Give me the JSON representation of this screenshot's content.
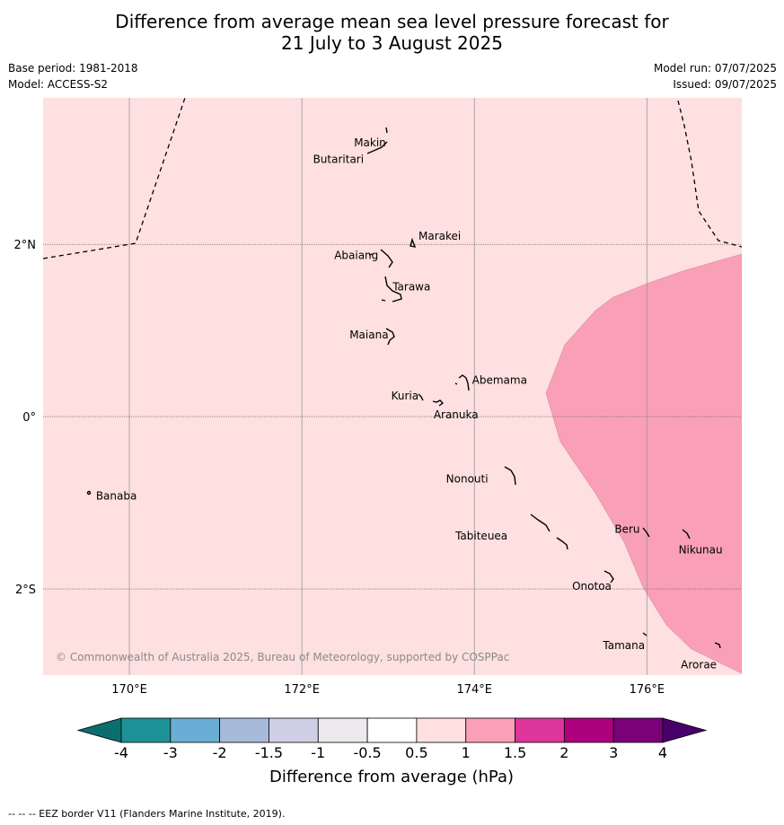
{
  "title": {
    "line1": "Difference from average mean sea level pressure forecast for",
    "line2": "21 July to 3 August 2025"
  },
  "meta": {
    "base_period": "Base period: 1981-2018",
    "model": "Model: ACCESS-S2",
    "model_run": "Model run: 07/07/2025",
    "issued": "Issued: 09/07/2025"
  },
  "map": {
    "lon_range": [
      169,
      177.1
    ],
    "lat_range": [
      -3.0,
      3.7
    ],
    "lon_ticks": [
      {
        "value": 170,
        "label": "170°E"
      },
      {
        "value": 172,
        "label": "172°E"
      },
      {
        "value": 174,
        "label": "174°E"
      },
      {
        "value": 176,
        "label": "176°E"
      }
    ],
    "lat_ticks": [
      {
        "value": 2,
        "label": "2°N"
      },
      {
        "value": 0,
        "label": "0°"
      },
      {
        "value": -2,
        "label": "2°S"
      }
    ],
    "background_fill": "#fde0df",
    "high_anomaly_fill": "#f9a0b7",
    "islands": [
      {
        "name": "Makin",
        "lon": 173.0,
        "lat": 3.2
      },
      {
        "name": "Butaritari",
        "lon": 172.9,
        "lat": 3.05
      },
      {
        "name": "Marakei",
        "lon": 173.3,
        "lat": 2.0
      },
      {
        "name": "Abaiang",
        "lon": 173.0,
        "lat": 1.85
      },
      {
        "name": "Tarawa",
        "lon": 173.0,
        "lat": 1.4
      },
      {
        "name": "Maiana",
        "lon": 173.0,
        "lat": 0.93
      },
      {
        "name": "Abemama",
        "lon": 173.9,
        "lat": 0.4
      },
      {
        "name": "Kuria",
        "lon": 173.4,
        "lat": 0.22
      },
      {
        "name": "Aranuka",
        "lon": 173.6,
        "lat": 0.17
      },
      {
        "name": "Nonouti",
        "lon": 174.4,
        "lat": -0.7
      },
      {
        "name": "Banaba",
        "lon": 169.55,
        "lat": -0.87
      },
      {
        "name": "Tabiteuea",
        "lon": 174.8,
        "lat": -1.3
      },
      {
        "name": "Beru",
        "lon": 176.0,
        "lat": -1.33
      },
      {
        "name": "Nikunau",
        "lon": 176.45,
        "lat": -1.35
      },
      {
        "name": "Onotoa",
        "lon": 175.55,
        "lat": -1.8
      },
      {
        "name": "Tamana",
        "lon": 175.98,
        "lat": -2.5
      },
      {
        "name": "Arorae",
        "lon": 176.8,
        "lat": -2.65
      }
    ],
    "copyright": "© Commonwealth of Australia 2025, Bureau of Meteorology, supported by COSPPac"
  },
  "colorbar": {
    "label": "Difference from average (hPa)",
    "ticks": [
      "-4",
      "-3",
      "-2",
      "-1.5",
      "-1",
      "-0.5",
      "0.5",
      "1",
      "1.5",
      "2",
      "3",
      "4"
    ],
    "colors": [
      "#1d9296",
      "#6aadd5",
      "#a6bbda",
      "#cfd0e6",
      "#ede9ef",
      "#ffffff",
      "#fde0df",
      "#f99fb6",
      "#dd359b",
      "#ad017e",
      "#7a0177"
    ],
    "extend_low_color": "#0b6e6e",
    "extend_high_color": "#49006a"
  },
  "footer": "--  --  -- EEZ border V11 (Flanders Marine Institute, 2019)."
}
